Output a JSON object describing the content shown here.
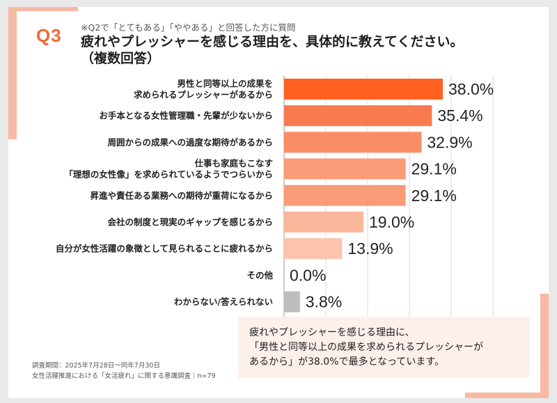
{
  "header": {
    "q_label": "Q3",
    "subtitle": "※Q2で「とてもある」「ややある」と回答した方に質問",
    "title_line1": "疲れやプレッシャーを感じる理由を、具体的に教えてください。",
    "title_line2": "（複数回答）"
  },
  "chart_data": {
    "type": "bar",
    "orientation": "horizontal",
    "unit": "%",
    "xlim": [
      0,
      50
    ],
    "grid": true,
    "categories": [
      [
        "男性と同等以上の成果を",
        "求められるプレッシャーがあるから"
      ],
      [
        "お手本となる女性管理職・先輩が少ないから"
      ],
      [
        "周囲からの成果への過度な期待があるから"
      ],
      [
        "仕事も家庭もこなす",
        "「理想の女性像」を求められているようでつらいから"
      ],
      [
        "昇進や責任ある業務への期待が重荷になるから"
      ],
      [
        "会社の制度と現実のギャップを感じるから"
      ],
      [
        "自分が女性活躍の象徴として見られることに疲れるから"
      ],
      [
        "その他"
      ],
      [
        "わからない/答えられない"
      ]
    ],
    "values": [
      38.0,
      35.4,
      32.9,
      29.1,
      29.1,
      19.0,
      13.9,
      0.0,
      3.8
    ],
    "value_labels": [
      "38.0%",
      "35.4%",
      "32.9%",
      "29.1%",
      "29.1%",
      "19.0%",
      "13.9%",
      "0.0%",
      "3.8%"
    ],
    "colors": [
      "#ff5f1f",
      "#f97a50",
      "#f98e66",
      "#fa9c77",
      "#fa9c77",
      "#fbb79c",
      "#fcc3ad",
      "#bbbbbb",
      "#bdbdbd"
    ]
  },
  "callout": {
    "line1": "疲れやプレッシャーを感じる理由に、",
    "line2": "「男性と同等以上の成果を求められるプレッシャーが",
    "line3": "あるから」が38.0%で最多となっています。"
  },
  "footnote": {
    "line1": "調査期間：2025年7月28日〜同年7月30日",
    "line2": "女性活躍推進における「女活疲れ」に関する意識調査｜n=79"
  },
  "colors": {
    "accent": "#ee6a3a",
    "frame_accent": "#f7b9a4",
    "callout_bg": "#fdf0ea"
  }
}
